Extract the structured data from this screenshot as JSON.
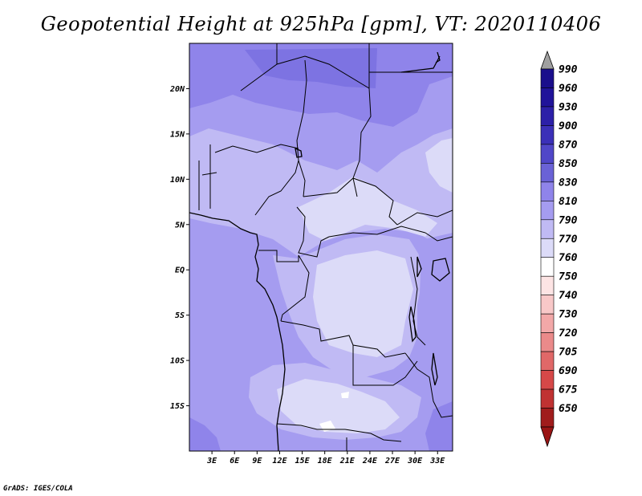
{
  "title": "Geopotential Height at 925hPa [gpm], VT: 2020110406",
  "credit": "GrADS: IGES/COLA",
  "map": {
    "lon_range": [
      0,
      35
    ],
    "lat_range": [
      -20,
      25
    ],
    "lat_ticks": [
      {
        "lat": 20,
        "label": "20N"
      },
      {
        "lat": 15,
        "label": "15N"
      },
      {
        "lat": 10,
        "label": "10N"
      },
      {
        "lat": 5,
        "label": "5N"
      },
      {
        "lat": 0,
        "label": "EQ"
      },
      {
        "lat": -5,
        "label": "5S"
      },
      {
        "lat": -10,
        "label": "10S"
      },
      {
        "lat": -15,
        "label": "15S"
      }
    ],
    "lon_ticks": [
      {
        "lon": 3,
        "label": "3E"
      },
      {
        "lon": 6,
        "label": "6E"
      },
      {
        "lon": 9,
        "label": "9E"
      },
      {
        "lon": 12,
        "label": "12E"
      },
      {
        "lon": 15,
        "label": "15E"
      },
      {
        "lon": 18,
        "label": "18E"
      },
      {
        "lon": 21,
        "label": "21E"
      },
      {
        "lon": 24,
        "label": "24E"
      },
      {
        "lon": 27,
        "label": "27E"
      },
      {
        "lon": 30,
        "label": "30E"
      },
      {
        "lon": 33,
        "label": "33E"
      }
    ],
    "fill_levels": {
      "background": "#a59cf0",
      "colors": {
        "830": "#8f84ea",
        "810": "#a59cf0",
        "790": "#c0baf4",
        "770": "#dcdbf8",
        "760": "#ffffff"
      }
    }
  },
  "colorbar": {
    "levels": [
      {
        "label": "990",
        "color": "#1a0e8c"
      },
      {
        "label": "960",
        "color": "#20139a"
      },
      {
        "label": "930",
        "color": "#2c20a8"
      },
      {
        "label": "900",
        "color": "#3b30b8"
      },
      {
        "label": "870",
        "color": "#5047c8"
      },
      {
        "label": "850",
        "color": "#6a62d6"
      },
      {
        "label": "830",
        "color": "#8f84ea"
      },
      {
        "label": "810",
        "color": "#a59cf0"
      },
      {
        "label": "790",
        "color": "#c0baf4"
      },
      {
        "label": "770",
        "color": "#dcdbf8"
      },
      {
        "label": "760",
        "color": "#ffffff"
      },
      {
        "label": "750",
        "color": "#fde4e4"
      },
      {
        "label": "740",
        "color": "#f8c8c8"
      },
      {
        "label": "730",
        "color": "#f2a8a8"
      },
      {
        "label": "720",
        "color": "#ea8a8a"
      },
      {
        "label": "705",
        "color": "#e06868"
      },
      {
        "label": "690",
        "color": "#d64848"
      },
      {
        "label": "675",
        "color": "#c03232"
      },
      {
        "label": "650",
        "color": "#a01c1c"
      }
    ],
    "top_arrow_color": "#a0a0a0",
    "bottom_arrow_color": "#9a1515"
  }
}
